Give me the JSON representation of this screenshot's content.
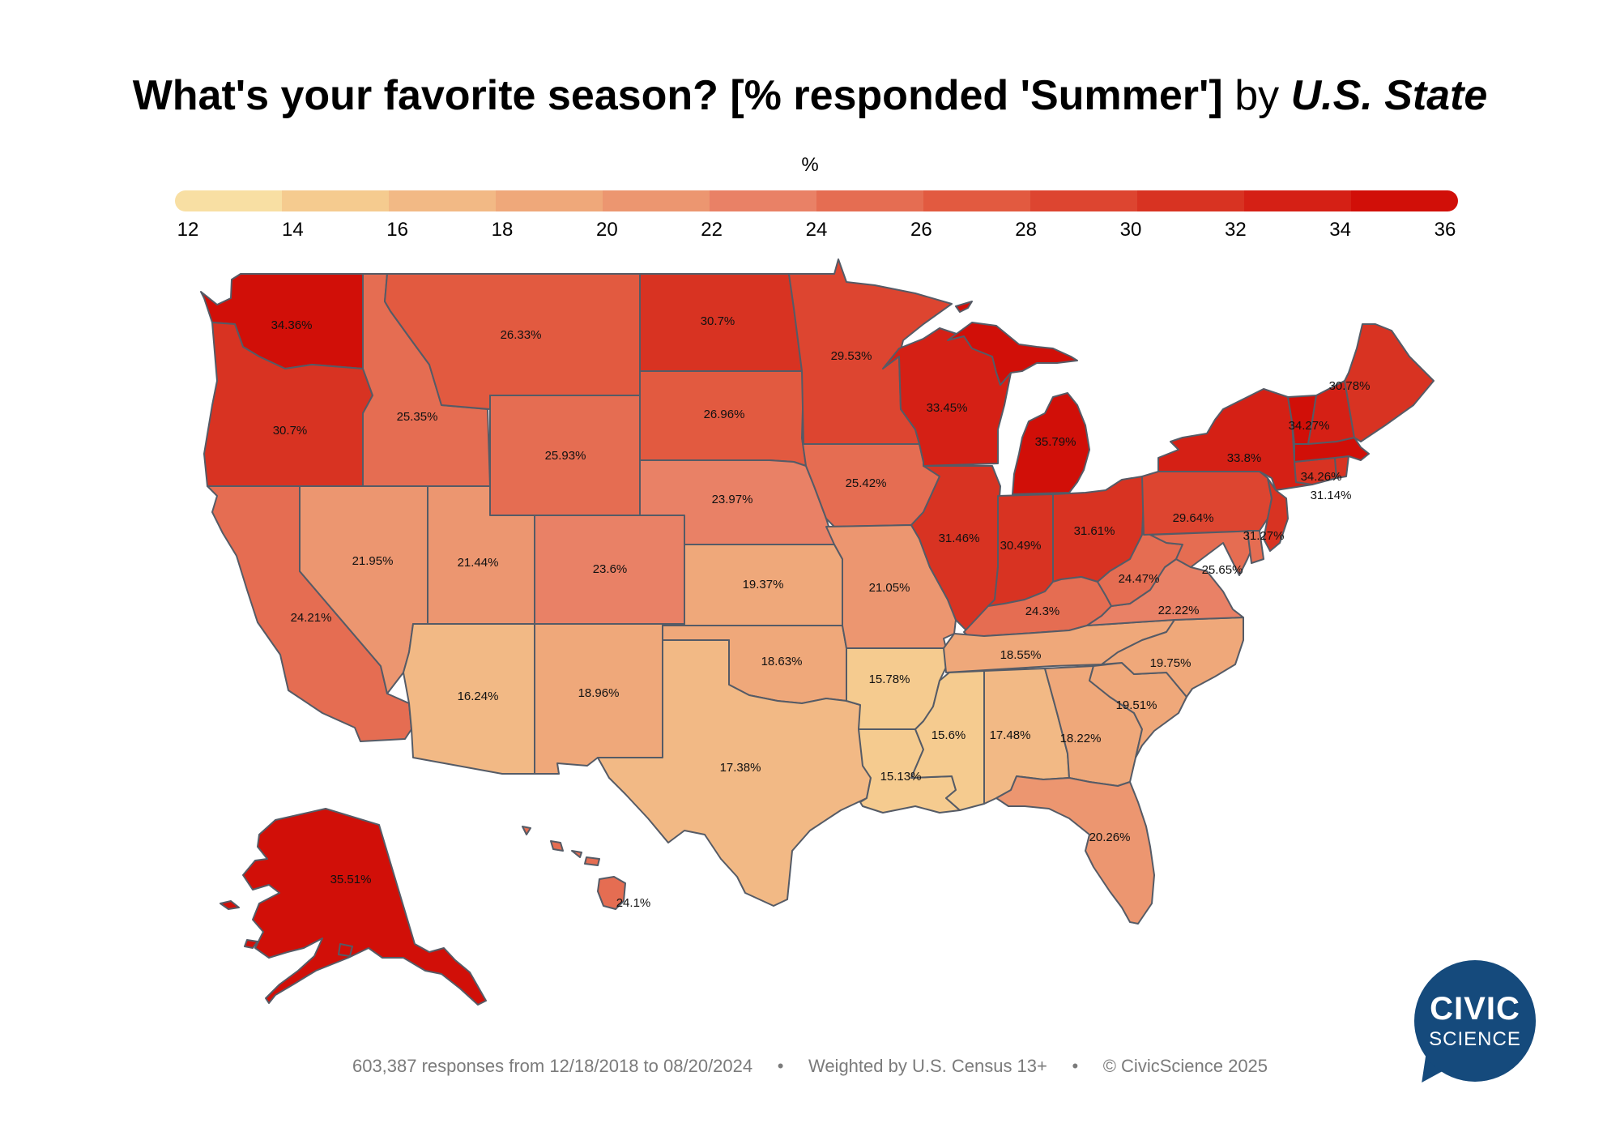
{
  "title": {
    "main": "What's your favorite season? [% responded 'Summer']",
    "by": "by",
    "geo": "U.S. State"
  },
  "legend": {
    "unit": "%",
    "ticks": [
      "12",
      "14",
      "16",
      "18",
      "20",
      "22",
      "24",
      "26",
      "28",
      "30",
      "32",
      "34",
      "36"
    ],
    "range": [
      12,
      36
    ],
    "bin_colors": [
      "#f8dfa3",
      "#f5cb8f",
      "#f2b985",
      "#efa87a",
      "#ec9670",
      "#e98166",
      "#e56d52",
      "#e25a40",
      "#dd4530",
      "#d83322",
      "#d52015",
      "#d10f08"
    ]
  },
  "states": [
    {
      "id": "WA",
      "value": "34.36%",
      "v": 34.36
    },
    {
      "id": "OR",
      "value": "30.7%",
      "v": 30.7
    },
    {
      "id": "CA",
      "value": "24.21%",
      "v": 24.21
    },
    {
      "id": "NV",
      "value": "21.95%",
      "v": 21.95
    },
    {
      "id": "ID",
      "value": "25.35%",
      "v": 25.35
    },
    {
      "id": "MT",
      "value": "26.33%",
      "v": 26.33
    },
    {
      "id": "WY",
      "value": "25.93%",
      "v": 25.93
    },
    {
      "id": "UT",
      "value": "21.44%",
      "v": 21.44
    },
    {
      "id": "AZ",
      "value": "16.24%",
      "v": 16.24
    },
    {
      "id": "CO",
      "value": "23.6%",
      "v": 23.6
    },
    {
      "id": "NM",
      "value": "18.96%",
      "v": 18.96
    },
    {
      "id": "ND",
      "value": "30.7%",
      "v": 30.7
    },
    {
      "id": "SD",
      "value": "26.96%",
      "v": 26.96
    },
    {
      "id": "NE",
      "value": "23.97%",
      "v": 23.97
    },
    {
      "id": "KS",
      "value": "19.37%",
      "v": 19.37
    },
    {
      "id": "OK",
      "value": "18.63%",
      "v": 18.63
    },
    {
      "id": "TX",
      "value": "17.38%",
      "v": 17.38
    },
    {
      "id": "MN",
      "value": "29.53%",
      "v": 29.53
    },
    {
      "id": "IA",
      "value": "25.42%",
      "v": 25.42
    },
    {
      "id": "MO",
      "value": "21.05%",
      "v": 21.05
    },
    {
      "id": "AR",
      "value": "15.78%",
      "v": 15.78
    },
    {
      "id": "LA",
      "value": "15.13%",
      "v": 15.13
    },
    {
      "id": "WI",
      "value": "33.45%",
      "v": 33.45
    },
    {
      "id": "IL",
      "value": "31.46%",
      "v": 31.46
    },
    {
      "id": "MI",
      "value": "35.79%",
      "v": 35.79
    },
    {
      "id": "IN",
      "value": "30.49%",
      "v": 30.49
    },
    {
      "id": "OH",
      "value": "31.61%",
      "v": 31.61
    },
    {
      "id": "KY",
      "value": "24.3%",
      "v": 24.3
    },
    {
      "id": "TN",
      "value": "18.55%",
      "v": 18.55
    },
    {
      "id": "MS",
      "value": "15.6%",
      "v": 15.6
    },
    {
      "id": "AL",
      "value": "17.48%",
      "v": 17.48
    },
    {
      "id": "GA",
      "value": "18.22%",
      "v": 18.22
    },
    {
      "id": "FL",
      "value": "20.26%",
      "v": 20.26
    },
    {
      "id": "SC",
      "value": "19.51%",
      "v": 19.51
    },
    {
      "id": "NC",
      "value": "19.75%",
      "v": 19.75
    },
    {
      "id": "VA",
      "value": "22.22%",
      "v": 22.22
    },
    {
      "id": "WV",
      "value": "24.47%",
      "v": 24.47
    },
    {
      "id": "PA",
      "value": "29.64%",
      "v": 29.64
    },
    {
      "id": "NY",
      "value": "33.8%",
      "v": 33.8
    },
    {
      "id": "NJ",
      "value": "31.27%",
      "v": 31.27
    },
    {
      "id": "MD",
      "value": "25.65%",
      "v": 25.65
    },
    {
      "id": "DE",
      "value": "",
      "v": 25.5
    },
    {
      "id": "CT",
      "value": "31.14%",
      "v": 31.14
    },
    {
      "id": "RI",
      "value": "",
      "v": 31.0
    },
    {
      "id": "MA",
      "value": "34.26%",
      "v": 34.26
    },
    {
      "id": "VT",
      "value": "34.27%",
      "v": 34.27
    },
    {
      "id": "NH",
      "value": "",
      "v": 32.0
    },
    {
      "id": "ME",
      "value": "30.78%",
      "v": 30.78
    },
    {
      "id": "AK",
      "value": "35.51%",
      "v": 35.51
    },
    {
      "id": "HI",
      "value": "24.1%",
      "v": 24.1
    }
  ],
  "footer": {
    "responses": "603,387 responses from 12/18/2018 to 08/20/2024",
    "weighting": "Weighted by U.S. Census 13+",
    "copyright": "© CivicScience 2025",
    "separator": "•"
  },
  "logo": {
    "line1": "CIVIC",
    "line2": "SCIENCE"
  }
}
